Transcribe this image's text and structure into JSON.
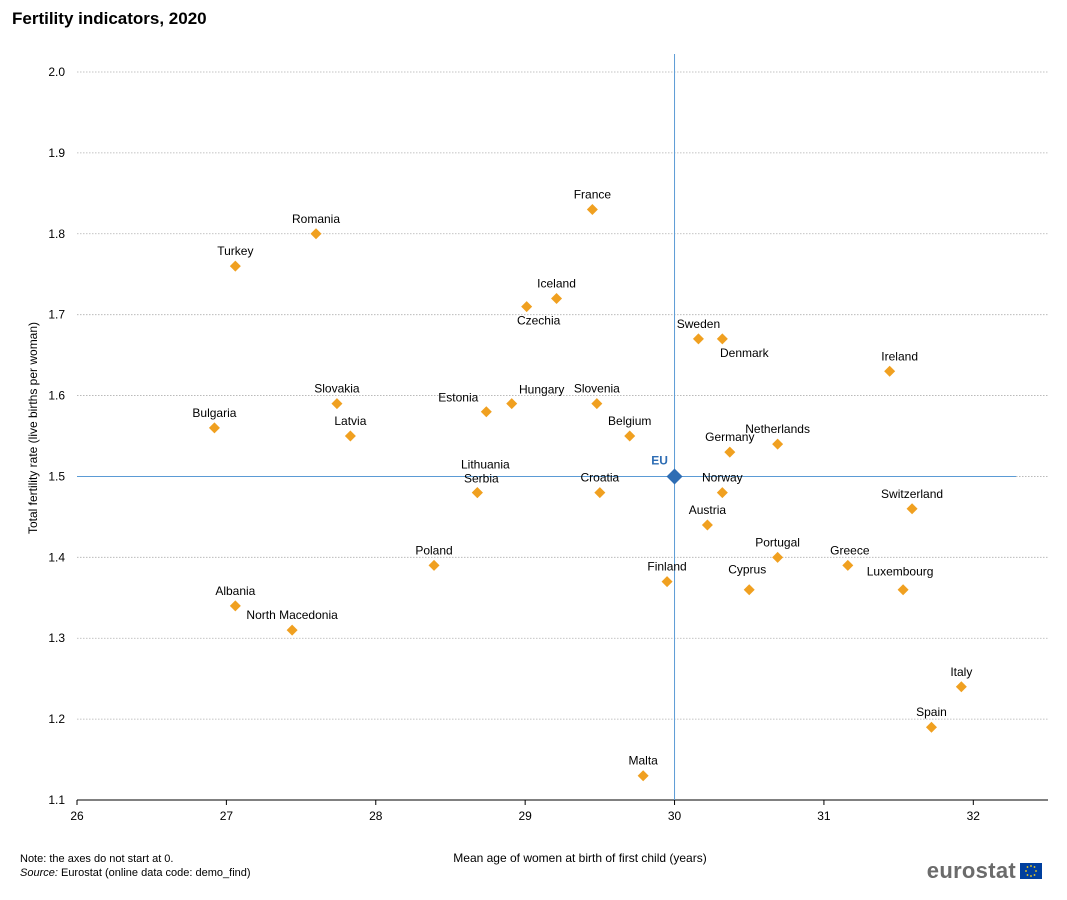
{
  "title": "Fertility indicators, 2020",
  "note_text": "Note: the axes do not start at 0.",
  "source_label": "Source:",
  "source_text": " Eurostat (online data code: demo_find)",
  "logo_text": "eurostat",
  "colors": {
    "marker": "#f0a020",
    "eu_marker": "#2e6db4",
    "eu_line": "#5b9bd5",
    "grid": "#b0b0b0"
  },
  "chart_data": {
    "type": "scatter",
    "title": "Fertility indicators, 2020",
    "xlabel": "Mean age of women at birth of first child (years)",
    "ylabel": "Total fertility rate (live births per woman)",
    "xlim": [
      26,
      32.5
    ],
    "ylim": [
      1.1,
      2.0
    ],
    "x_ticks": [
      "26",
      "27",
      "28",
      "29",
      "30",
      "31",
      "32"
    ],
    "y_ticks": [
      "1.1",
      "1.2",
      "1.3",
      "1.4",
      "1.5",
      "1.6",
      "1.7",
      "1.8",
      "1.9",
      "2.0"
    ],
    "grid": "horizontal",
    "reference": {
      "label": "EU",
      "x": 30.0,
      "y": 1.5
    },
    "points": [
      {
        "label": "France",
        "x": 29.45,
        "y": 1.83
      },
      {
        "label": "Romania",
        "x": 27.6,
        "y": 1.8
      },
      {
        "label": "Turkey",
        "x": 27.06,
        "y": 1.76
      },
      {
        "label": "Iceland",
        "x": 29.21,
        "y": 1.72
      },
      {
        "label": "Czechia",
        "x": 29.01,
        "y": 1.71
      },
      {
        "label": "Sweden",
        "x": 30.16,
        "y": 1.67
      },
      {
        "label": "Denmark",
        "x": 30.32,
        "y": 1.67
      },
      {
        "label": "Ireland",
        "x": 31.44,
        "y": 1.63
      },
      {
        "label": "Slovakia",
        "x": 27.74,
        "y": 1.59
      },
      {
        "label": "Slovenia",
        "x": 29.48,
        "y": 1.59
      },
      {
        "label": "Hungary",
        "x": 28.91,
        "y": 1.59
      },
      {
        "label": "Estonia",
        "x": 28.74,
        "y": 1.58
      },
      {
        "label": "Bulgaria",
        "x": 26.92,
        "y": 1.56
      },
      {
        "label": "Belgium",
        "x": 29.7,
        "y": 1.55
      },
      {
        "label": "Latvia",
        "x": 27.83,
        "y": 1.55
      },
      {
        "label": "Netherlands",
        "x": 30.69,
        "y": 1.54
      },
      {
        "label": "Germany",
        "x": 30.37,
        "y": 1.53
      },
      {
        "label": "Lithuania",
        "x": 28.68,
        "y": 1.48
      },
      {
        "label": "Serbia",
        "x": 28.68,
        "y": 1.48
      },
      {
        "label": "Croatia",
        "x": 29.5,
        "y": 1.48
      },
      {
        "label": "Norway",
        "x": 30.32,
        "y": 1.48
      },
      {
        "label": "Switzerland",
        "x": 31.59,
        "y": 1.46
      },
      {
        "label": "Austria",
        "x": 30.22,
        "y": 1.44
      },
      {
        "label": "Portugal",
        "x": 30.69,
        "y": 1.4
      },
      {
        "label": "Poland",
        "x": 28.39,
        "y": 1.39
      },
      {
        "label": "Greece",
        "x": 31.16,
        "y": 1.39
      },
      {
        "label": "Finland",
        "x": 29.95,
        "y": 1.37
      },
      {
        "label": "Cyprus",
        "x": 30.5,
        "y": 1.36
      },
      {
        "label": "Luxembourg",
        "x": 31.53,
        "y": 1.36
      },
      {
        "label": "Albania",
        "x": 27.06,
        "y": 1.34
      },
      {
        "label": "North Macedonia",
        "x": 27.44,
        "y": 1.31
      },
      {
        "label": "Italy",
        "x": 31.92,
        "y": 1.24
      },
      {
        "label": "Spain",
        "x": 31.72,
        "y": 1.19
      },
      {
        "label": "Malta",
        "x": 29.79,
        "y": 1.13
      }
    ]
  }
}
